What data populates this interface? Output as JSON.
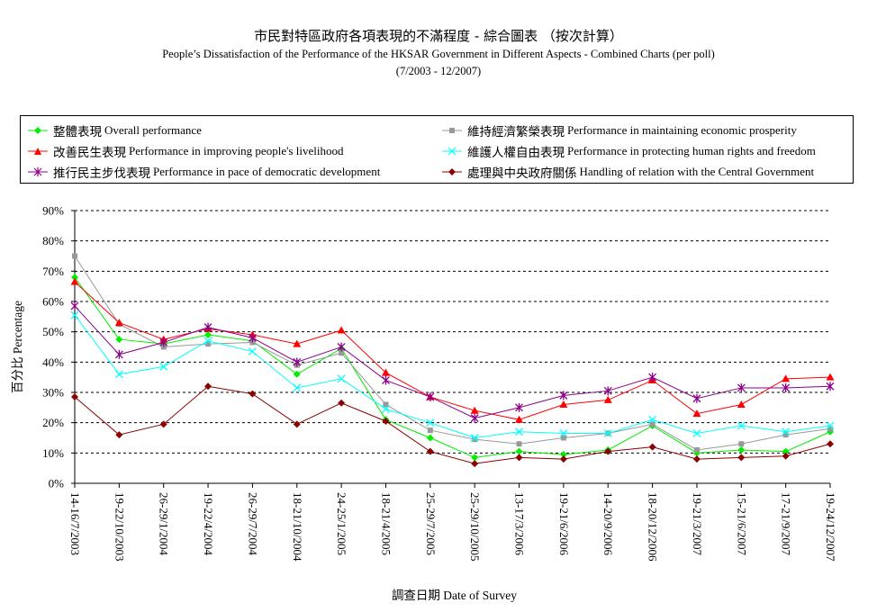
{
  "title": {
    "line1": "市民對特區政府各項表現的不滿程度  -  綜合圖表 （按次計算）",
    "line2": "People’s Dissatisfaction of the Performance of the HKSAR Government in Different Aspects - Combined Charts  (per poll)",
    "line3": "(7/2003 - 12/2007)"
  },
  "chart_data": {
    "type": "line",
    "xlabel": "調查日期 Date of Survey",
    "ylabel": "百分比 Percentage",
    "ylim": [
      0,
      90
    ],
    "yticks": [
      "0%",
      "10%",
      "20%",
      "30%",
      "40%",
      "50%",
      "60%",
      "70%",
      "80%",
      "90%"
    ],
    "grid": "horizontal dashed",
    "legend_position": "top",
    "categories": [
      "14-16/7/2003",
      "19-22/10/2003",
      "26-29/1/2004",
      "19-22/4/2004",
      "26-29/7/2004",
      "18-21/10/2004",
      "24-25/1/2005",
      "18-21/4/2005",
      "25-29/7/2005",
      "25-29/10/2005",
      "13-17/3/2006",
      "19-21/6/2006",
      "14-20/9/2006",
      "18-20/12/2006",
      "19-21/3/2007",
      "15-21/6/2007",
      "17-21/9/2007",
      "19-24/12/2007"
    ],
    "series": [
      {
        "name_zh": "整體表現",
        "name_en": "Overall performance",
        "color": "#00ee00",
        "marker": "diamond",
        "values": [
          68,
          47.5,
          46,
          49,
          47,
          36,
          44.5,
          21,
          15,
          8.5,
          10.5,
          9.5,
          11,
          19,
          10,
          11,
          10.5,
          17
        ]
      },
      {
        "name_zh": "維持經濟繁榮表現",
        "name_en": "Performance in maintaining economic prosperity",
        "color": "#999999",
        "marker": "square",
        "values": [
          75,
          52.5,
          45,
          46,
          46.5,
          39,
          43,
          26,
          17.5,
          14.5,
          13,
          15,
          16.5,
          19.5,
          11,
          13,
          16,
          18
        ]
      },
      {
        "name_zh": "改善民生表現",
        "name_en": "Performance in improving people's livelihood",
        "color": "#ff0000",
        "marker": "triangle",
        "values": [
          66.5,
          53,
          47.5,
          51,
          49,
          46,
          50.5,
          36.5,
          28.5,
          24,
          21,
          26,
          27.5,
          34,
          23,
          26,
          34.5,
          35
        ]
      },
      {
        "name_zh": "維護人權自由表現",
        "name_en": "Performance in protecting human rights and freedom",
        "color": "#00ffff",
        "marker": "star",
        "values": [
          55.5,
          36,
          38.5,
          47,
          43.5,
          31.5,
          34.5,
          24.5,
          20,
          15,
          17,
          16.5,
          16.5,
          21,
          16.5,
          19,
          17,
          19
        ]
      },
      {
        "name_zh": "推行民主步伐表現",
        "name_en": "Performance in pace of democratic development",
        "color": "#8b008b",
        "marker": "asterisk",
        "values": [
          58.5,
          42.5,
          46.5,
          51.5,
          48,
          40,
          45,
          34,
          28.5,
          21.5,
          25,
          29,
          30.5,
          35,
          28,
          31.5,
          31.5,
          32
        ]
      },
      {
        "name_zh": "處理與中央政府關係",
        "name_en": "Handling of relation with the Central Government",
        "color": "#8b0000",
        "marker": "diamond",
        "values": [
          28.5,
          16,
          19.5,
          32,
          29.5,
          19.5,
          26.5,
          20.5,
          10.5,
          6.5,
          8.5,
          8,
          10.5,
          12,
          8,
          8.5,
          9,
          13
        ]
      }
    ]
  }
}
